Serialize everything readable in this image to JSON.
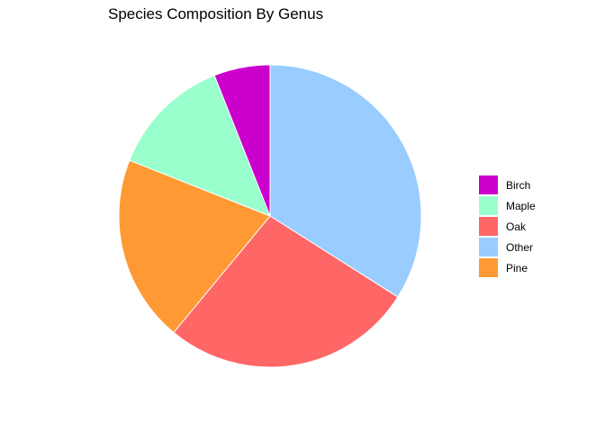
{
  "chart_data": {
    "type": "pie",
    "title": "Species Composition By Genus",
    "categories": [
      "Other",
      "Oak",
      "Pine",
      "Maple",
      "Birch"
    ],
    "values": [
      34,
      27,
      20,
      13,
      6
    ],
    "colors": [
      "#99ccff",
      "#ff6666",
      "#ff9933",
      "#99ffcc",
      "#cc00cc"
    ],
    "legend": {
      "position": "right",
      "items": [
        {
          "label": "Birch",
          "color": "#cc00cc"
        },
        {
          "label": "Maple",
          "color": "#99ffcc"
        },
        {
          "label": "Oak",
          "color": "#ff6666"
        },
        {
          "label": "Other",
          "color": "#99ccff"
        },
        {
          "label": "Pine",
          "color": "#ff9933"
        }
      ]
    }
  }
}
